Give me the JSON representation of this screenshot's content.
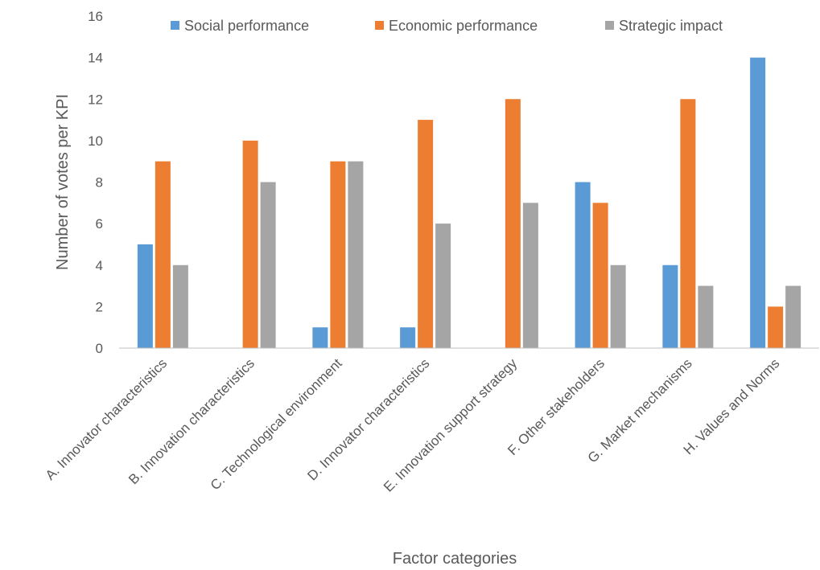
{
  "chart_data": {
    "type": "bar",
    "title": "",
    "xlabel": "Factor categories",
    "ylabel": "Number of votes per KPI",
    "ylim": [
      0,
      16
    ],
    "yticks": [
      0,
      2,
      4,
      6,
      8,
      10,
      12,
      14,
      16
    ],
    "grid": false,
    "legend_position": "top",
    "categories": [
      "A. Innovator characteristics",
      "B. Innovation characteristics",
      "C. Technological environment",
      "D. Innovator characteristics",
      "E. Innovation support strategy",
      "F. Other stakeholders",
      "G. Market mechanisms",
      "H. Values and Norms"
    ],
    "series": [
      {
        "name": "Social performance",
        "color": "#5B9BD5",
        "values": [
          5,
          0,
          1,
          1,
          0,
          8,
          4,
          14
        ]
      },
      {
        "name": "Economic performance",
        "color": "#ED7D31",
        "values": [
          9,
          10,
          9,
          11,
          12,
          7,
          12,
          2
        ]
      },
      {
        "name": "Strategic impact",
        "color": "#A5A5A5",
        "values": [
          4,
          8,
          9,
          6,
          7,
          4,
          3,
          3
        ]
      }
    ]
  }
}
